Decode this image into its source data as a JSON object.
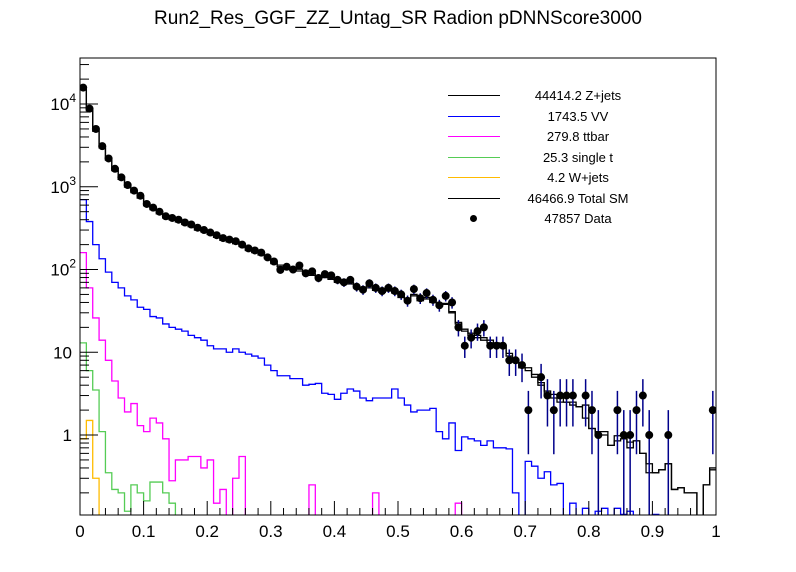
{
  "chart_data": {
    "type": "histogram",
    "title": "Run2_Res_GGF_ZZ_Untag_SR Radion  pDNNScore3000",
    "xlabel": "",
    "ylabel": "",
    "xlim": [
      0,
      1
    ],
    "ylim": [
      0.108,
      36000
    ],
    "yscale": "log",
    "nbins": 100,
    "x_ticks": [
      "0",
      "0.1",
      "0.2",
      "0.3",
      "0.4",
      "0.5",
      "0.6",
      "0.7",
      "0.8",
      "0.9",
      "1"
    ],
    "y_ticks": [
      {
        "value": 10000,
        "base": "10",
        "exp": "4"
      },
      {
        "value": 1000,
        "base": "10",
        "exp": "3"
      },
      {
        "value": 100,
        "base": "10",
        "exp": "2"
      },
      {
        "value": 10,
        "base": "10",
        "exp": ""
      },
      {
        "value": 1,
        "base": "1",
        "exp": ""
      }
    ],
    "legend_position": "top-right",
    "series": [
      {
        "name": "Z+jets",
        "legend": "44414.2 Z+jets",
        "color": "#000000",
        "style": "step",
        "values": [
          15000,
          8300,
          4700,
          2950,
          2100,
          1570,
          1230,
          990,
          850,
          730,
          590,
          530,
          470,
          420,
          400,
          375,
          350,
          330,
          300,
          285,
          265,
          245,
          225,
          215,
          205,
          190,
          170,
          160,
          150,
          135,
          118,
          108,
          102,
          98,
          96,
          88,
          85,
          80,
          80,
          76,
          70,
          68,
          67,
          60,
          58,
          60,
          56,
          53,
          55,
          52,
          46,
          42,
          48,
          42,
          44,
          40,
          36,
          38,
          30,
          22,
          18,
          16,
          15,
          14,
          13,
          12,
          11.5,
          9,
          8,
          6.5,
          6,
          5,
          4,
          3,
          2.8,
          2.5,
          2.5,
          2.3,
          2.2,
          1.6,
          1.2,
          1,
          1,
          0.75,
          0.85,
          0.9,
          0.7,
          0.85,
          0.6,
          0.35,
          0.35,
          0.38,
          0.45,
          0.22,
          0.23,
          0.2,
          0.2,
          0,
          0.25,
          0.38
        ]
      },
      {
        "name": "VV",
        "legend": "1743.5 VV",
        "color": "#0000ff",
        "style": "step",
        "values": [
          700,
          380,
          200,
          135,
          93,
          70,
          60,
          48,
          43,
          35,
          33,
          27,
          26,
          22,
          20,
          19,
          18,
          16,
          15,
          14,
          12,
          11,
          11,
          10,
          11,
          10,
          9.5,
          9,
          8.5,
          7,
          6,
          5.2,
          5.2,
          4.8,
          4.8,
          4,
          4.1,
          4.2,
          3.2,
          3.1,
          2.7,
          3.2,
          3.6,
          3.4,
          2.8,
          2.6,
          2.8,
          2.8,
          2.8,
          3.6,
          2.8,
          2.3,
          1.9,
          2.0,
          2.0,
          2.1,
          1.1,
          0.9,
          1.4,
          0.65,
          0.95,
          0.9,
          0.85,
          0.75,
          0.85,
          0.7,
          0.7,
          0.68,
          0.2,
          0,
          0.48,
          0.42,
          0.3,
          0.36,
          0.25,
          0.26,
          0,
          0.15,
          0,
          0.13,
          0,
          0.12,
          0.13,
          0,
          0.13,
          0.11,
          0.12,
          0,
          0,
          0,
          0.11,
          0,
          0,
          0,
          0,
          0,
          0,
          0,
          0,
          0
        ]
      },
      {
        "name": "ttbar",
        "legend": "279.8 ttbar",
        "color": "#ff00ff",
        "style": "step",
        "values": [
          160,
          60,
          26,
          14,
          8,
          4.5,
          2.8,
          1.9,
          2.4,
          1.3,
          1.1,
          1.6,
          1.4,
          0.9,
          0.28,
          0.5,
          0.5,
          0.55,
          0.55,
          0.4,
          0.5,
          0.15,
          0.22,
          0,
          0.3,
          0.55,
          0,
          0,
          0,
          0,
          0,
          0,
          0,
          0,
          0,
          0,
          0.25,
          0,
          0,
          0,
          0,
          0,
          0,
          0,
          0,
          0,
          0.2,
          0,
          0,
          0,
          0,
          0,
          0,
          0,
          0,
          0,
          0,
          0,
          0,
          0.15,
          0,
          0,
          0,
          0,
          0,
          0,
          0,
          0,
          0,
          0,
          0,
          0,
          0,
          0,
          0,
          0,
          0,
          0,
          0,
          0,
          0,
          0,
          0,
          0,
          0,
          0,
          0,
          0,
          0,
          0,
          0,
          0,
          0,
          0,
          0,
          0,
          0,
          0,
          0,
          0
        ]
      },
      {
        "name": "single t",
        "legend": "25.3 single t",
        "color": "#55cc55",
        "style": "step",
        "values": [
          13,
          6,
          3.5,
          1.1,
          0.35,
          0.22,
          0.2,
          0.12,
          0.25,
          0.2,
          0.16,
          0.27,
          0.27,
          0.2,
          0.15,
          0,
          0,
          0,
          0,
          0,
          0,
          0,
          0,
          0,
          0,
          0,
          0,
          0,
          0,
          0,
          0,
          0,
          0,
          0,
          0,
          0,
          0,
          0,
          0,
          0,
          0,
          0,
          0,
          0,
          0,
          0,
          0,
          0,
          0,
          0,
          0,
          0,
          0,
          0,
          0,
          0,
          0,
          0,
          0,
          0,
          0,
          0,
          0,
          0,
          0,
          0,
          0,
          0,
          0,
          0,
          0,
          0,
          0,
          0,
          0,
          0,
          0,
          0,
          0,
          0,
          0,
          0,
          0,
          0,
          0,
          0,
          0,
          0,
          0,
          0,
          0,
          0,
          0,
          0,
          0,
          0,
          0,
          0,
          0,
          0
        ]
      },
      {
        "name": "W+jets",
        "legend": "4.2 W+jets",
        "color": "#ffbb00",
        "style": "step",
        "values": [
          0.9,
          1.5,
          0.3,
          0,
          0,
          0,
          0,
          0,
          0,
          0,
          0,
          0,
          0,
          0,
          0,
          0,
          0,
          0,
          0,
          0,
          0,
          0,
          0,
          0,
          0,
          0,
          0,
          0,
          0,
          0,
          0,
          0,
          0,
          0,
          0,
          0,
          0,
          0,
          0,
          0,
          0,
          0,
          0,
          0,
          0,
          0,
          0,
          0,
          0,
          0,
          0,
          0,
          0,
          0,
          0,
          0,
          0,
          0,
          0,
          0,
          0,
          0,
          0,
          0,
          0,
          0,
          0,
          0,
          0,
          0,
          0,
          0,
          0,
          0,
          0,
          0,
          0,
          0,
          0,
          0,
          0,
          0,
          0,
          0,
          0,
          0,
          0,
          0,
          0,
          0,
          0,
          0,
          0,
          0,
          0,
          0,
          0,
          0,
          0,
          0
        ]
      },
      {
        "name": "Total SM",
        "legend": "46466.9 Total SM",
        "color": "#000000",
        "style": "step",
        "values": [
          15900,
          8700,
          4950,
          3100,
          2200,
          1650,
          1300,
          1040,
          890,
          770,
          625,
          560,
          500,
          445,
          420,
          395,
          370,
          345,
          315,
          300,
          278,
          256,
          236,
          225,
          216,
          200,
          180,
          169,
          158,
          142,
          124,
          113,
          107,
          103,
          101,
          92,
          89,
          84,
          83,
          79,
          73,
          71,
          70,
          63,
          61,
          63,
          59,
          56,
          58,
          56,
          49,
          44,
          50,
          44,
          46,
          42,
          37,
          39,
          31,
          23,
          19,
          17,
          16,
          15,
          14,
          13,
          12.2,
          9.7,
          8.2,
          6.5,
          6.5,
          5.4,
          4.3,
          3.4,
          3.1,
          2.8,
          2.5,
          2.5,
          2.2,
          2.3,
          1.2,
          1.1,
          1.1,
          0.75,
          0.98,
          1.0,
          0.82,
          0.85,
          0.6,
          0.45,
          0.35,
          0.38,
          0.45,
          0.22,
          0.23,
          0.2,
          0.2,
          0,
          0.25,
          0.4
        ]
      },
      {
        "name": "Data",
        "legend": "47857 Data",
        "color": "#000000",
        "style": "points",
        "values": [
          15800,
          8800,
          5000,
          3100,
          2200,
          1650,
          1300,
          1050,
          900,
          780,
          620,
          560,
          500,
          440,
          420,
          400,
          370,
          350,
          320,
          300,
          280,
          260,
          240,
          230,
          220,
          200,
          180,
          170,
          160,
          140,
          125,
          99,
          108,
          100,
          112,
          90,
          95,
          79,
          88,
          85,
          75,
          70,
          75,
          62,
          57,
          68,
          60,
          55,
          60,
          55,
          50,
          42,
          58,
          45,
          52,
          43,
          37,
          48,
          40,
          20,
          12,
          15,
          18,
          20,
          12,
          12,
          12,
          8,
          8,
          7,
          2,
          0,
          5,
          3,
          2,
          3,
          3,
          3,
          0,
          3,
          2,
          1,
          0,
          0,
          2,
          1,
          1,
          2,
          3,
          1,
          0,
          0,
          1,
          0,
          0,
          0,
          0,
          0,
          0,
          2
        ]
      }
    ]
  }
}
